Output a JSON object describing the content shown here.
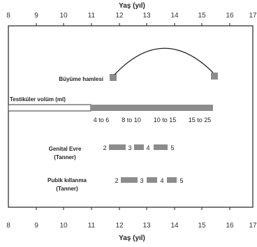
{
  "axis": {
    "title": "Yaş (yıl)",
    "ticks": [
      "8",
      "9",
      "10",
      "11",
      "12",
      "13",
      "14",
      "15",
      "16",
      "17"
    ]
  },
  "growth": {
    "label": "Büyüme hamlesi"
  },
  "testis": {
    "label": "Testiküler volüm (ml)",
    "values": [
      "4 to 6",
      "8 to 10",
      "10 to 15",
      "15 to 25"
    ]
  },
  "genital": {
    "label_line1": "Genital Evre",
    "label_line2": "(Tanner)",
    "stages": [
      "2",
      "3",
      "4",
      "5"
    ]
  },
  "pubic": {
    "label_line1": "Pubik kıllanma",
    "label_line2": "(Tanner)",
    "stages": [
      "2",
      "3",
      "4",
      "5"
    ]
  },
  "colors": {
    "bar": "#8c8c8c",
    "frame": "#222222"
  }
}
